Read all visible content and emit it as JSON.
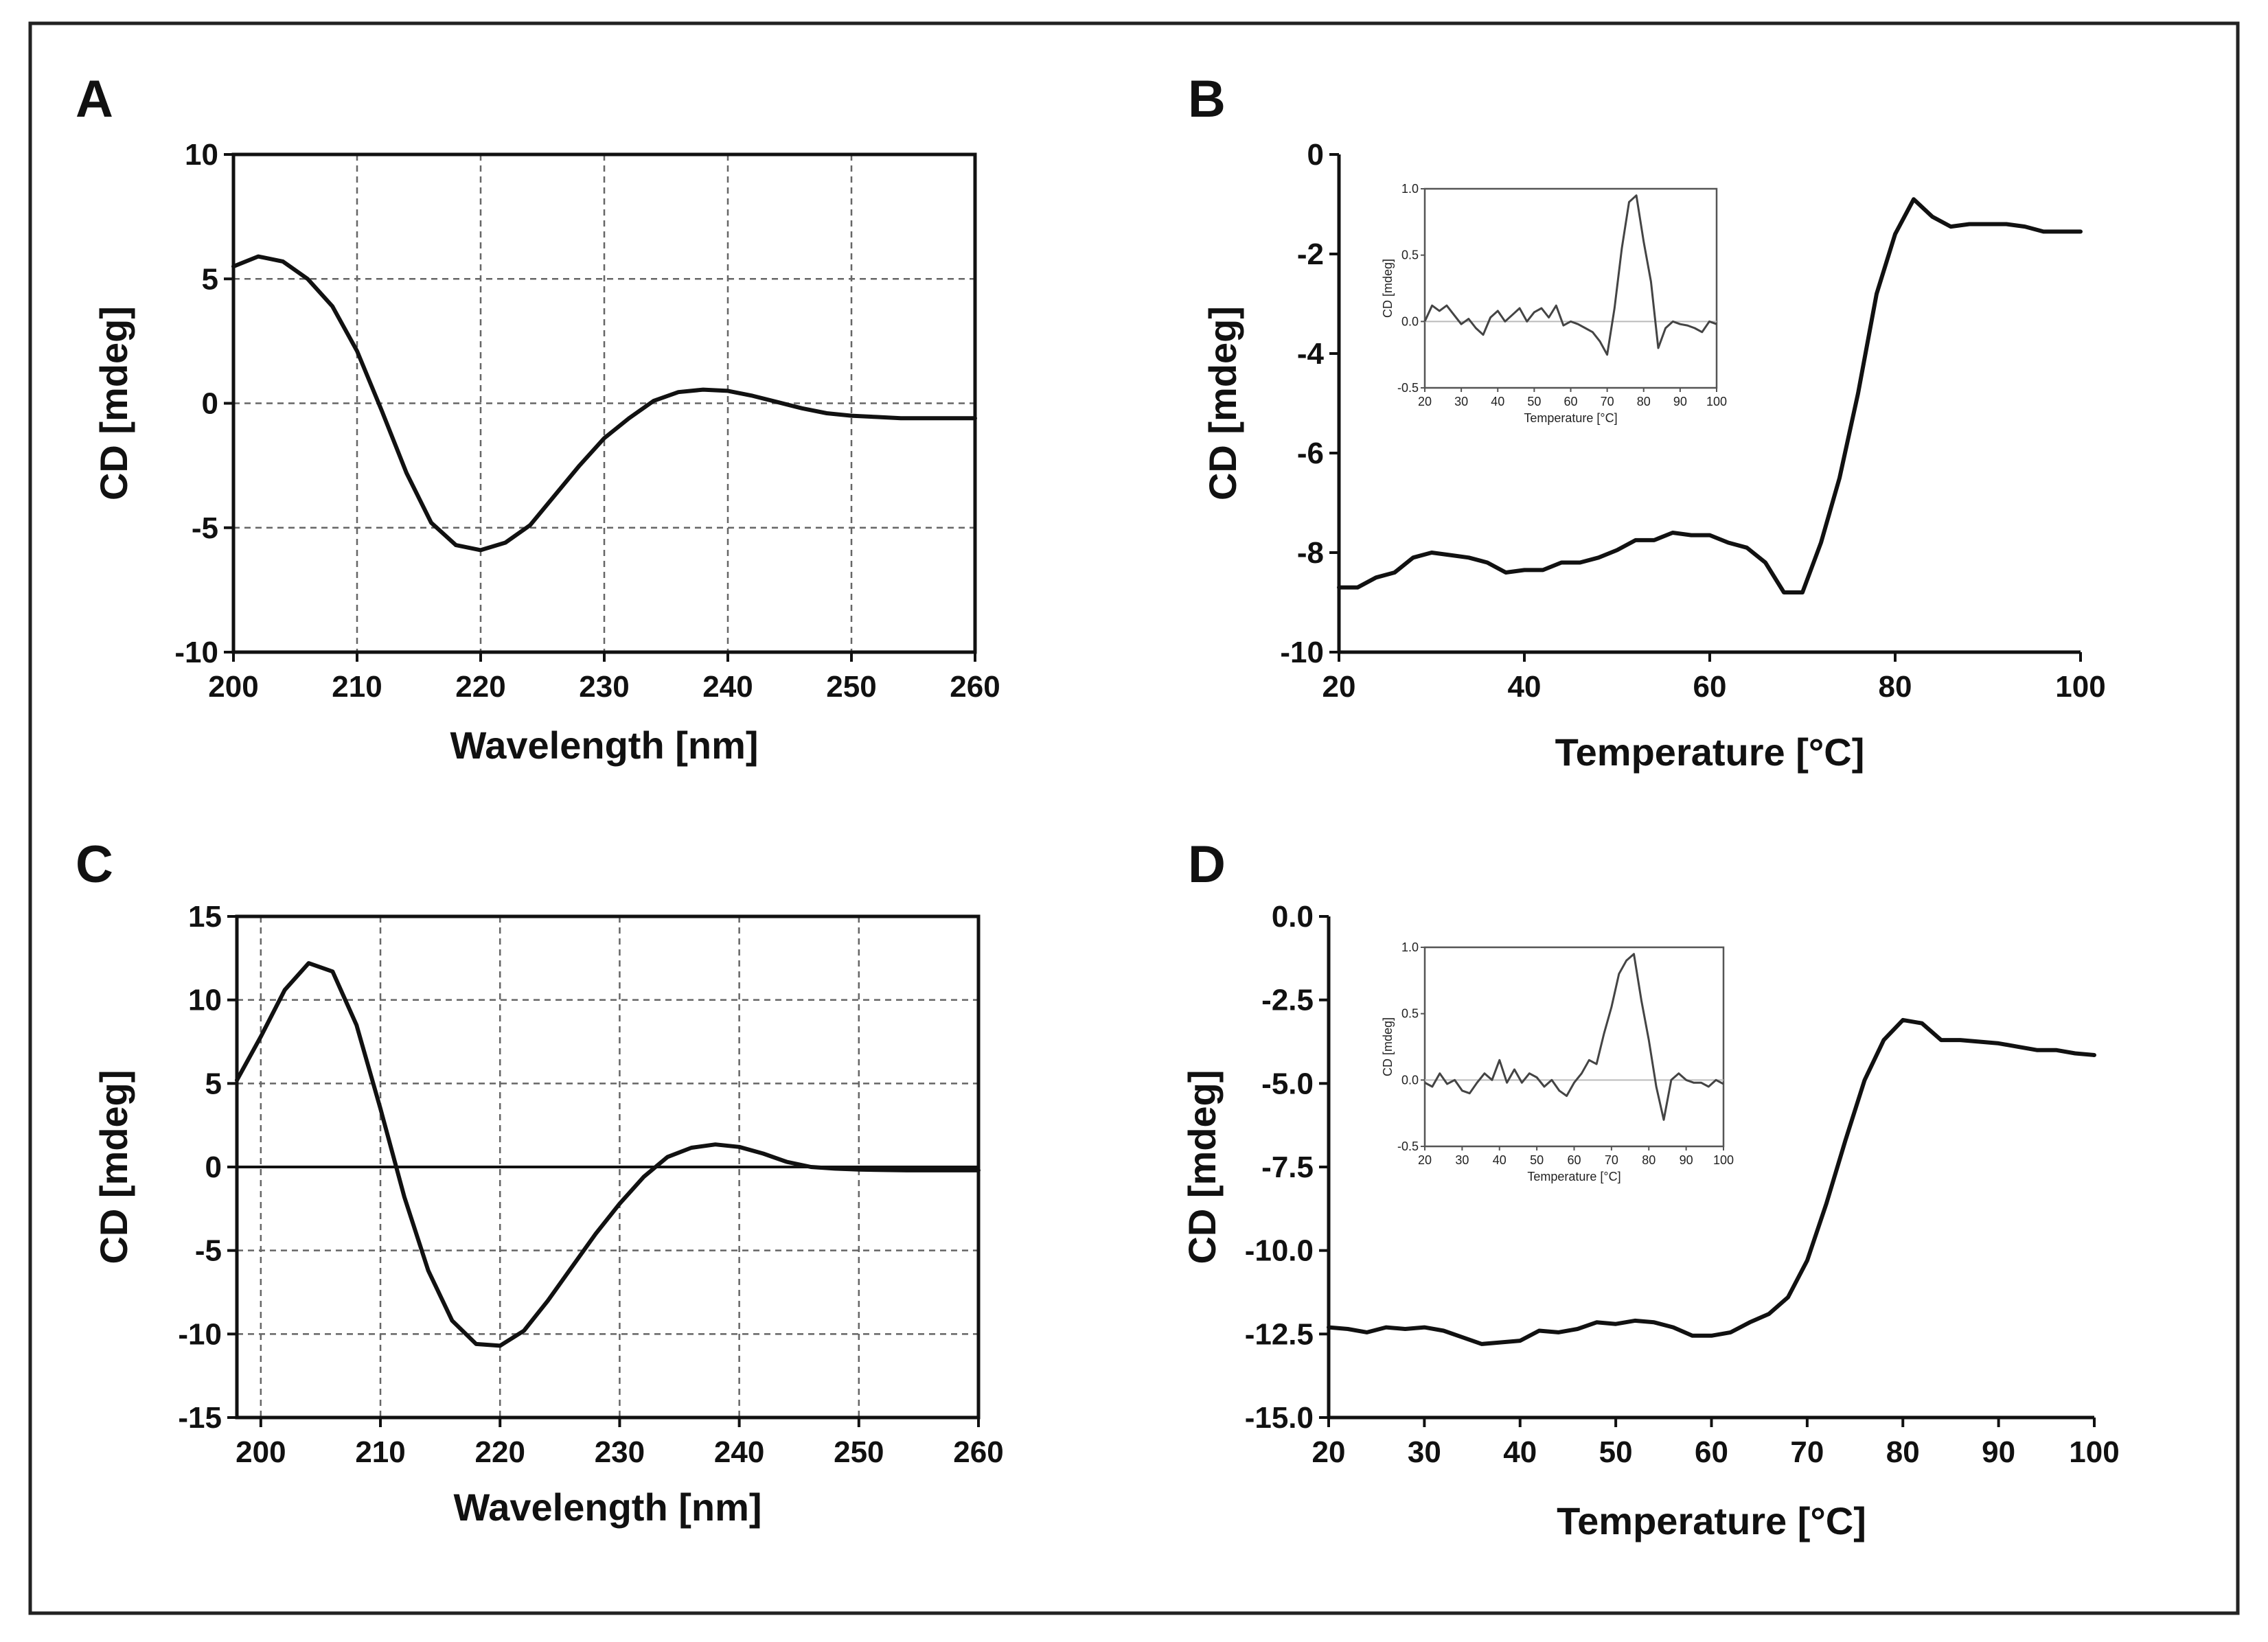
{
  "chart_data": [
    {
      "panel": "A",
      "type": "line",
      "xlabel": "Wavelength [nm]",
      "ylabel": "CD [mdeg]",
      "xlim": [
        200,
        260
      ],
      "ylim": [
        -10,
        10
      ],
      "xticks": [
        200,
        210,
        220,
        230,
        240,
        250,
        260
      ],
      "yticks": [
        -10,
        -5,
        0,
        5,
        10
      ],
      "ytick_labels": [
        "-10",
        "-5",
        "0",
        "5",
        "10"
      ],
      "grid": true,
      "zero_line": "dashed",
      "series": [
        {
          "x": [
            200,
            202,
            204,
            206,
            208,
            210,
            212,
            214,
            216,
            218,
            220,
            222,
            224,
            226,
            228,
            230,
            232,
            234,
            236,
            238,
            240,
            242,
            244,
            246,
            248,
            250,
            252,
            254,
            256,
            258,
            260
          ],
          "y": [
            5.5,
            5.9,
            5.7,
            5.0,
            3.9,
            2.1,
            -0.3,
            -2.8,
            -4.8,
            -5.7,
            -5.9,
            -5.6,
            -4.9,
            -3.7,
            -2.5,
            -1.4,
            -0.6,
            0.1,
            0.45,
            0.55,
            0.5,
            0.3,
            0.05,
            -0.2,
            -0.4,
            -0.5,
            -0.55,
            -0.6,
            -0.6,
            -0.6,
            -0.6
          ]
        }
      ]
    },
    {
      "panel": "B",
      "type": "line",
      "xlabel": "Temperature [°C]",
      "ylabel": "CD [mdeg]",
      "xlim": [
        20,
        100
      ],
      "ylim": [
        -10,
        0
      ],
      "xticks": [
        20,
        40,
        60,
        80,
        100
      ],
      "yticks": [
        -10,
        -8,
        -6,
        -4,
        -2,
        0
      ],
      "ytick_labels": [
        "-10",
        "-8",
        "-6",
        "-4",
        "-2",
        "0"
      ],
      "grid": false,
      "series": [
        {
          "x": [
            20,
            22,
            24,
            26,
            28,
            30,
            32,
            34,
            36,
            38,
            40,
            42,
            44,
            46,
            48,
            50,
            52,
            54,
            56,
            58,
            60,
            62,
            64,
            66,
            68,
            70,
            72,
            74,
            76,
            78,
            80,
            82,
            84,
            86,
            88,
            90,
            92,
            94,
            96,
            98,
            100
          ],
          "y": [
            -8.7,
            -8.7,
            -8.5,
            -8.4,
            -8.1,
            -8.0,
            -8.05,
            -8.1,
            -8.2,
            -8.4,
            -8.35,
            -8.35,
            -8.2,
            -8.2,
            -8.1,
            -7.95,
            -7.75,
            -7.75,
            -7.6,
            -7.65,
            -7.65,
            -7.8,
            -7.9,
            -8.2,
            -8.8,
            -8.8,
            -7.8,
            -6.5,
            -4.8,
            -2.8,
            -1.6,
            -0.9,
            -1.25,
            -1.45,
            -1.4,
            -1.4,
            -1.4,
            -1.45,
            -1.55,
            -1.55,
            -1.55
          ]
        }
      ],
      "inset": {
        "type": "line",
        "xlabel": "Temperature [°C]",
        "ylabel": "CD [mdeg]",
        "xlim": [
          20,
          100
        ],
        "ylim": [
          -0.5,
          1.0
        ],
        "xticks": [
          20,
          30,
          40,
          50,
          60,
          70,
          80,
          90,
          100
        ],
        "yticks": [
          -0.5,
          0.0,
          0.5,
          1.0
        ],
        "ytick_labels": [
          "-0.5",
          "0.0",
          "0.5",
          "1.0"
        ],
        "zero_line": true,
        "series": [
          {
            "x": [
              20,
              22,
              24,
              26,
              28,
              30,
              32,
              34,
              36,
              38,
              40,
              42,
              44,
              46,
              48,
              50,
              52,
              54,
              56,
              58,
              60,
              62,
              64,
              66,
              68,
              70,
              72,
              74,
              76,
              78,
              80,
              82,
              84,
              86,
              88,
              90,
              92,
              94,
              96,
              98,
              100
            ],
            "y": [
              0.0,
              0.12,
              0.08,
              0.12,
              0.05,
              -0.02,
              0.02,
              -0.05,
              -0.1,
              0.03,
              0.08,
              0.0,
              0.05,
              0.1,
              0.0,
              0.07,
              0.1,
              0.03,
              0.12,
              -0.03,
              0.0,
              -0.02,
              -0.05,
              -0.08,
              -0.15,
              -0.25,
              0.1,
              0.55,
              0.9,
              0.95,
              0.6,
              0.3,
              -0.2,
              -0.05,
              0.0,
              -0.02,
              -0.03,
              -0.05,
              -0.08,
              0.0,
              -0.02
            ]
          }
        ]
      }
    },
    {
      "panel": "C",
      "type": "line",
      "xlabel": "Wavelength [nm]",
      "ylabel": "CD [mdeg]",
      "xlim": [
        198,
        260
      ],
      "ylim": [
        -15,
        15
      ],
      "xticks": [
        200,
        210,
        220,
        230,
        240,
        250,
        260
      ],
      "yticks": [
        -15,
        -10,
        -5,
        0,
        5,
        10,
        15
      ],
      "ytick_labels": [
        "-15",
        "-10",
        "-5",
        "0",
        "5",
        "10",
        "15"
      ],
      "grid": true,
      "zero_line": "solid",
      "series": [
        {
          "x": [
            198,
            200,
            202,
            204,
            206,
            208,
            210,
            212,
            214,
            216,
            218,
            220,
            222,
            224,
            226,
            228,
            230,
            232,
            234,
            236,
            238,
            240,
            242,
            244,
            246,
            248,
            250,
            252,
            254,
            256,
            258,
            260
          ],
          "y": [
            5.2,
            7.8,
            10.6,
            12.2,
            11.7,
            8.5,
            3.5,
            -1.8,
            -6.2,
            -9.2,
            -10.6,
            -10.7,
            -9.8,
            -8.0,
            -6.0,
            -4.0,
            -2.2,
            -0.6,
            0.6,
            1.15,
            1.35,
            1.2,
            0.8,
            0.3,
            0.0,
            -0.1,
            -0.15,
            -0.18,
            -0.2,
            -0.2,
            -0.2,
            -0.2
          ]
        }
      ]
    },
    {
      "panel": "D",
      "type": "line",
      "xlabel": "Temperature [°C]",
      "ylabel": "CD [mdeg]",
      "xlim": [
        20,
        100
      ],
      "ylim": [
        -15,
        0
      ],
      "xticks": [
        20,
        30,
        40,
        50,
        60,
        70,
        80,
        90,
        100
      ],
      "yticks": [
        -15,
        -12.5,
        -10,
        -7.5,
        -5,
        -2.5,
        0
      ],
      "ytick_labels": [
        "-15.0",
        "-12.5",
        "-10.0",
        "-7.5",
        "-5.0",
        "-2.5",
        "0.0"
      ],
      "grid": false,
      "series": [
        {
          "x": [
            20,
            22,
            24,
            26,
            28,
            30,
            32,
            34,
            36,
            38,
            40,
            42,
            44,
            46,
            48,
            50,
            52,
            54,
            56,
            58,
            60,
            62,
            64,
            66,
            68,
            70,
            72,
            74,
            76,
            78,
            80,
            82,
            84,
            86,
            88,
            90,
            92,
            94,
            96,
            98,
            100
          ],
          "y": [
            -12.3,
            -12.35,
            -12.45,
            -12.3,
            -12.35,
            -12.3,
            -12.4,
            -12.6,
            -12.8,
            -12.75,
            -12.7,
            -12.4,
            -12.45,
            -12.35,
            -12.15,
            -12.2,
            -12.1,
            -12.15,
            -12.3,
            -12.55,
            -12.55,
            -12.45,
            -12.15,
            -11.9,
            -11.4,
            -10.3,
            -8.6,
            -6.7,
            -4.9,
            -3.7,
            -3.1,
            -3.2,
            -3.7,
            -3.7,
            -3.75,
            -3.8,
            -3.9,
            -4.0,
            -4.0,
            -4.1,
            -4.15
          ]
        }
      ],
      "inset": {
        "type": "line",
        "xlabel": "Temperature [°C]",
        "ylabel": "CD [mdeg]",
        "xlim": [
          20,
          100
        ],
        "ylim": [
          -0.5,
          1.0
        ],
        "xticks": [
          20,
          30,
          40,
          50,
          60,
          70,
          80,
          90,
          100
        ],
        "yticks": [
          -0.5,
          0.0,
          0.5,
          1.0
        ],
        "ytick_labels": [
          "-0.5",
          "0.0",
          "0.5",
          "1.0"
        ],
        "zero_line": true,
        "series": [
          {
            "x": [
              20,
              22,
              24,
              26,
              28,
              30,
              32,
              34,
              36,
              38,
              40,
              42,
              44,
              46,
              48,
              50,
              52,
              54,
              56,
              58,
              60,
              62,
              64,
              66,
              68,
              70,
              72,
              74,
              76,
              78,
              80,
              82,
              84,
              86,
              88,
              90,
              92,
              94,
              96,
              98,
              100
            ],
            "y": [
              -0.02,
              -0.05,
              0.05,
              -0.03,
              0.0,
              -0.08,
              -0.1,
              -0.02,
              0.05,
              0.0,
              0.15,
              -0.02,
              0.08,
              -0.02,
              0.05,
              0.02,
              -0.05,
              0.0,
              -0.08,
              -0.12,
              -0.02,
              0.05,
              0.15,
              0.12,
              0.35,
              0.55,
              0.8,
              0.9,
              0.95,
              0.6,
              0.3,
              -0.05,
              -0.3,
              0.0,
              0.05,
              0.0,
              -0.02,
              -0.02,
              -0.05,
              0.0,
              -0.03
            ]
          }
        ]
      }
    }
  ],
  "colors": {
    "line": "#111111",
    "inset_line": "#444444",
    "grid": "#666666",
    "inset_zero": "#bbbbbb"
  }
}
